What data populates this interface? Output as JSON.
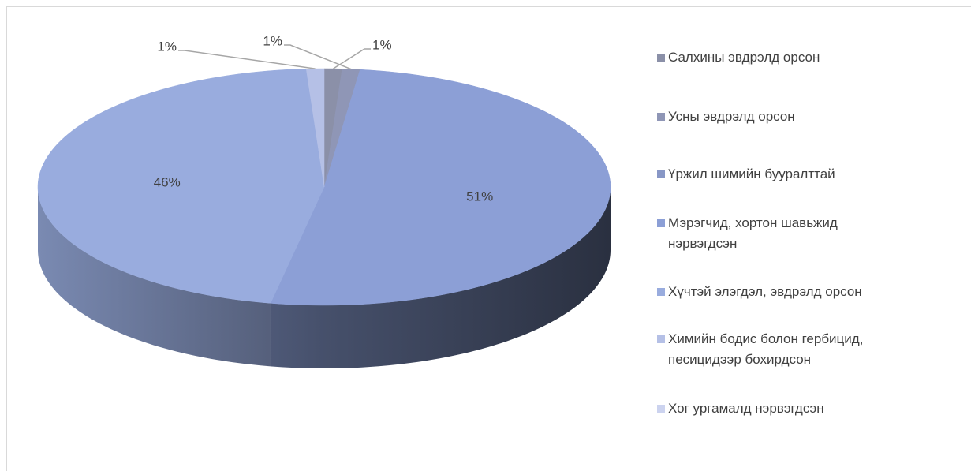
{
  "chart_data": {
    "type": "pie3d",
    "categories": [
      "Салхины эвдрэлд орсон",
      "Усны эвдрэлд орсон",
      "Үржил шимийн бууралттай",
      "Мэрэгчид, хортон шавьжид нэрвэгдсэн",
      "Хүчтэй элэгдэл, эвдрэлд орсон",
      "Химийн бодис болон гербицид, песицидээр бохирдсон",
      "Хог ургамалд нэрвэгдсэн"
    ],
    "values": [
      1,
      1,
      0,
      51,
      46,
      1,
      0
    ],
    "value_labels": [
      "1%",
      "1%",
      null,
      "51%",
      "46%",
      "1%",
      null
    ],
    "colors": [
      "#8b90a8",
      "#8f96b6",
      "#8897c6",
      "#8c9fd6",
      "#99acde",
      "#b5c0e6",
      "#ccd3ef"
    ],
    "legend": "right"
  }
}
